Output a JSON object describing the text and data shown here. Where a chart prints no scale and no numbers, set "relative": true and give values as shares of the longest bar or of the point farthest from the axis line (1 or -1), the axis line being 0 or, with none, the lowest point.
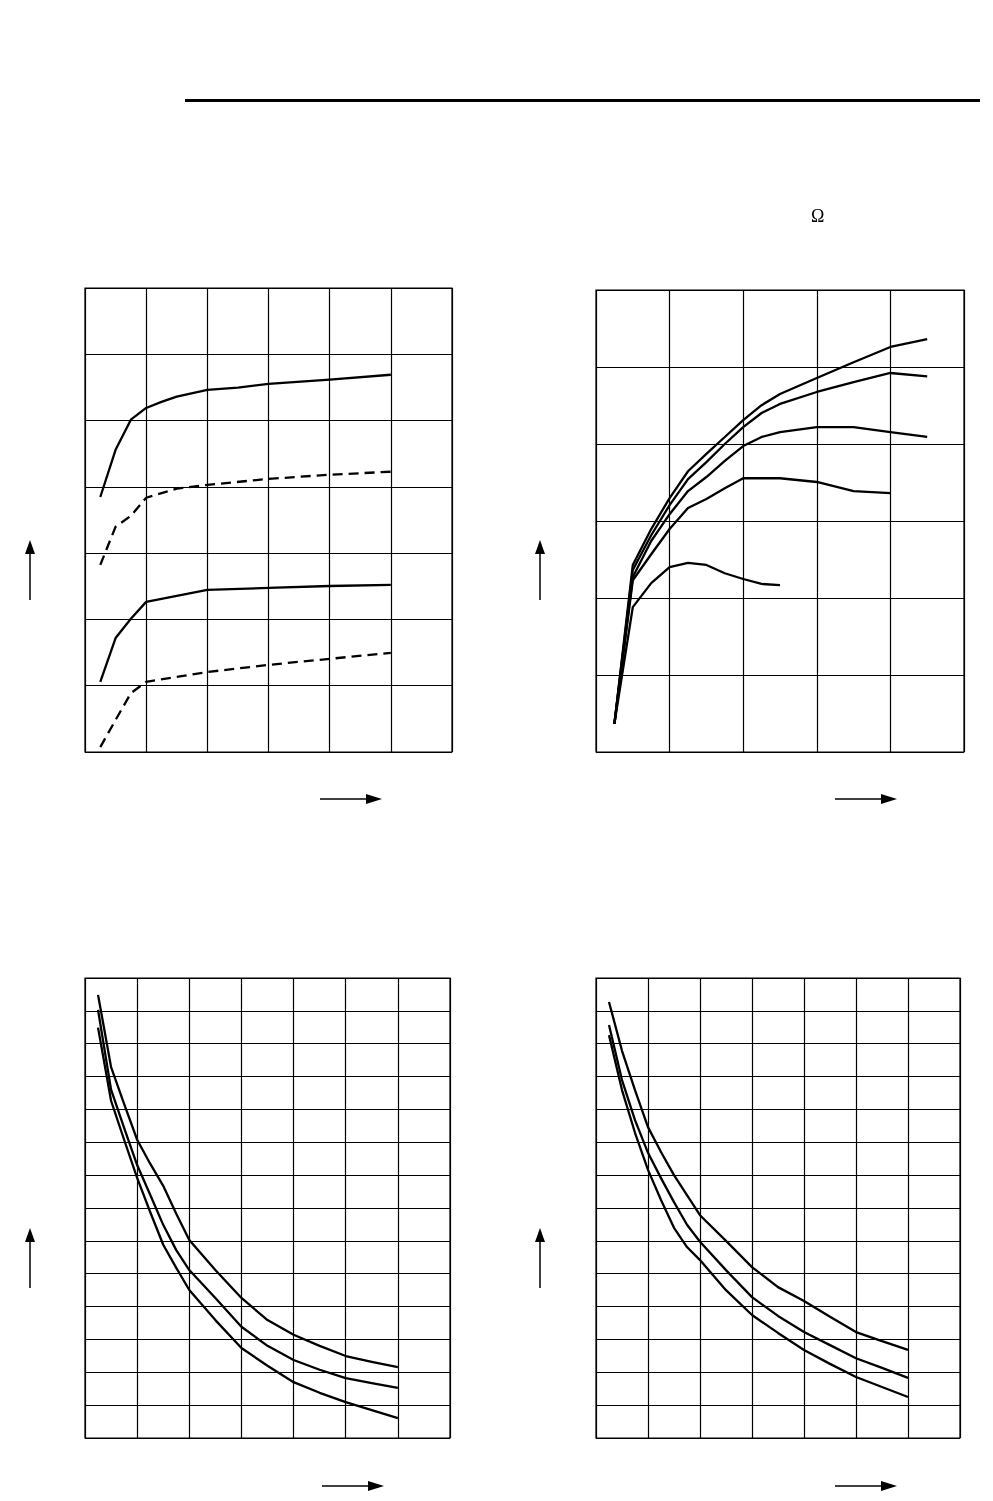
{
  "chart_data": [
    {
      "type": "line",
      "relative": true,
      "grid": true,
      "marker": "none",
      "categories": [
        null,
        null,
        null,
        null,
        null,
        null,
        null,
        null,
        null,
        null,
        null,
        null,
        null,
        null,
        null,
        null,
        null,
        null,
        null,
        null,
        null,
        null,
        null,
        null,
        null
      ],
      "series": [
        {
          "color": "#000000",
          "line_style": "solid",
          "values": [
            null,
            0.676,
            0.801,
            0.881,
            0.912,
            0.928,
            0.942,
            null,
            0.96,
            null,
            0.966,
            null,
            0.976,
            null,
            null,
            null,
            0.987,
            null,
            null,
            null,
            1,
            null,
            null,
            null,
            null
          ]
        },
        {
          "color": "#000000",
          "line_style": "dashed",
          "values": [
            null,
            0.496,
            0.597,
            0.626,
            0.674,
            null,
            0.698,
            null,
            0.708,
            null,
            null,
            null,
            0.724,
            null,
            null,
            null,
            0.735,
            null,
            null,
            null,
            0.743,
            null,
            null,
            null,
            null
          ]
        },
        {
          "color": "#000000",
          "line_style": "solid",
          "values": [
            null,
            0.186,
            0.302,
            0.353,
            0.398,
            null,
            0.414,
            null,
            0.43,
            null,
            null,
            null,
            0.435,
            null,
            null,
            null,
            0.44,
            null,
            null,
            null,
            0.443,
            null,
            null,
            null,
            null
          ]
        },
        {
          "color": "#000000",
          "line_style": "dashed",
          "values": [
            null,
            0.013,
            0.085,
            0.156,
            0.186,
            null,
            0.199,
            null,
            0.212,
            null,
            null,
            null,
            0.231,
            null,
            null,
            null,
            0.247,
            null,
            null,
            null,
            0.263,
            null,
            null,
            null,
            null
          ]
        }
      ]
    },
    {
      "type": "line",
      "relative": true,
      "grid": true,
      "marker": "none",
      "title": "Ω",
      "categories": [
        null,
        null,
        null,
        null,
        null,
        null,
        null,
        null,
        null,
        null,
        null,
        null,
        null,
        null,
        null,
        null,
        null,
        null,
        null,
        null,
        null
      ],
      "series": [
        {
          "color": "#000000",
          "line_style": "solid",
          "values": [
            null,
            0.068,
            0.453,
            0.54,
            0.615,
            0.68,
            0.722,
            0.763,
            0.804,
            0.84,
            0.867,
            null,
            0.906,
            null,
            0.944,
            null,
            0.981,
            null,
            1,
            null,
            null
          ]
        },
        {
          "color": "#000000",
          "line_style": "solid",
          "values": [
            null,
            0.068,
            0.441,
            0.525,
            0.598,
            0.661,
            0.702,
            0.746,
            0.787,
            0.821,
            0.843,
            null,
            0.872,
            null,
            0.896,
            null,
            0.918,
            null,
            0.91,
            null,
            null
          ]
        },
        {
          "color": "#000000",
          "line_style": "solid",
          "values": [
            null,
            0.068,
            0.424,
            0.511,
            0.576,
            0.632,
            0.666,
            0.705,
            0.741,
            0.763,
            0.775,
            null,
            0.787,
            null,
            0.787,
            null,
            0.775,
            null,
            0.763,
            null,
            null
          ]
        },
        {
          "color": "#000000",
          "line_style": "solid",
          "values": [
            null,
            0.068,
            0.416,
            0.479,
            0.54,
            0.591,
            0.613,
            0.639,
            0.663,
            0.663,
            0.663,
            null,
            0.654,
            null,
            0.632,
            null,
            0.627,
            null,
            null,
            null,
            null
          ]
        },
        {
          "color": "#000000",
          "line_style": "solid",
          "values": [
            null,
            0.068,
            0.351,
            0.409,
            0.448,
            0.458,
            0.453,
            0.433,
            0.419,
            0.407,
            0.404,
            null,
            null,
            null,
            null,
            null,
            null,
            null,
            null,
            null,
            null
          ]
        }
      ]
    },
    {
      "type": "line",
      "relative": true,
      "grid": true,
      "marker": "none",
      "categories": [
        null,
        null,
        null,
        null,
        null,
        null,
        null,
        null,
        null,
        null,
        null,
        null,
        null,
        null,
        null,
        null,
        null,
        null,
        null,
        null,
        null,
        null,
        null,
        null,
        null,
        null,
        null,
        null,
        null
      ],
      "series": [
        {
          "color": "#000000",
          "line_style": "solid",
          "values": [
            null,
            1,
            0.837,
            0.754,
            0.673,
            0.619,
            0.569,
            0.506,
            0.447,
            null,
            0.379,
            null,
            0.316,
            null,
            0.266,
            null,
            0.233,
            null,
            0.208,
            null,
            0.185,
            null,
            0.172,
            null,
            0.16,
            null,
            null,
            null,
            null
          ]
        },
        {
          "color": "#000000",
          "line_style": "solid",
          "values": [
            null,
            0.966,
            0.786,
            0.7,
            0.616,
            0.549,
            0.481,
            0.424,
            0.379,
            null,
            0.316,
            null,
            0.251,
            null,
            0.208,
            null,
            0.176,
            null,
            0.154,
            null,
            0.135,
            null,
            0.124,
            null,
            0.113,
            null,
            null,
            null,
            null
          ]
        },
        {
          "color": "#000000",
          "line_style": "solid",
          "values": [
            null,
            0.926,
            0.761,
            0.673,
            0.587,
            0.51,
            0.436,
            0.384,
            0.334,
            null,
            0.266,
            null,
            0.203,
            null,
            0.163,
            null,
            0.126,
            null,
            0.102,
            null,
            0.081,
            null,
            0.063,
            null,
            0.045,
            null,
            null,
            null,
            null
          ]
        }
      ]
    },
    {
      "type": "line",
      "relative": true,
      "grid": true,
      "marker": "none",
      "categories": [
        null,
        null,
        null,
        null,
        null,
        null,
        null,
        null,
        null,
        null,
        null,
        null,
        null,
        null,
        null,
        null,
        null,
        null,
        null,
        null,
        null,
        null,
        null,
        null,
        null,
        null,
        null,
        null,
        null
      ],
      "series": [
        {
          "color": "#000000",
          "line_style": "solid",
          "values": [
            null,
            1,
            0.888,
            0.798,
            0.713,
            0.656,
            0.603,
            0.557,
            0.511,
            null,
            0.452,
            null,
            0.392,
            null,
            0.346,
            null,
            0.314,
            null,
            0.278,
            null,
            0.243,
            null,
            0.222,
            null,
            0.202,
            null,
            null,
            null,
            null
          ]
        },
        {
          "color": "#000000",
          "line_style": "solid",
          "values": [
            null,
            0.947,
            0.821,
            0.729,
            0.654,
            0.596,
            0.541,
            0.489,
            0.45,
            null,
            0.385,
            null,
            0.323,
            null,
            0.28,
            null,
            0.243,
            null,
            0.213,
            null,
            0.183,
            null,
            0.161,
            null,
            0.138,
            null,
            null,
            null,
            null
          ]
        },
        {
          "color": "#000000",
          "line_style": "solid",
          "values": [
            null,
            0.924,
            0.798,
            0.7,
            0.615,
            0.546,
            0.482,
            0.438,
            0.408,
            null,
            0.339,
            null,
            0.282,
            null,
            0.241,
            null,
            0.202,
            null,
            0.17,
            null,
            0.14,
            null,
            0.117,
            null,
            0.094,
            null,
            null,
            null,
            null
          ]
        }
      ]
    }
  ]
}
